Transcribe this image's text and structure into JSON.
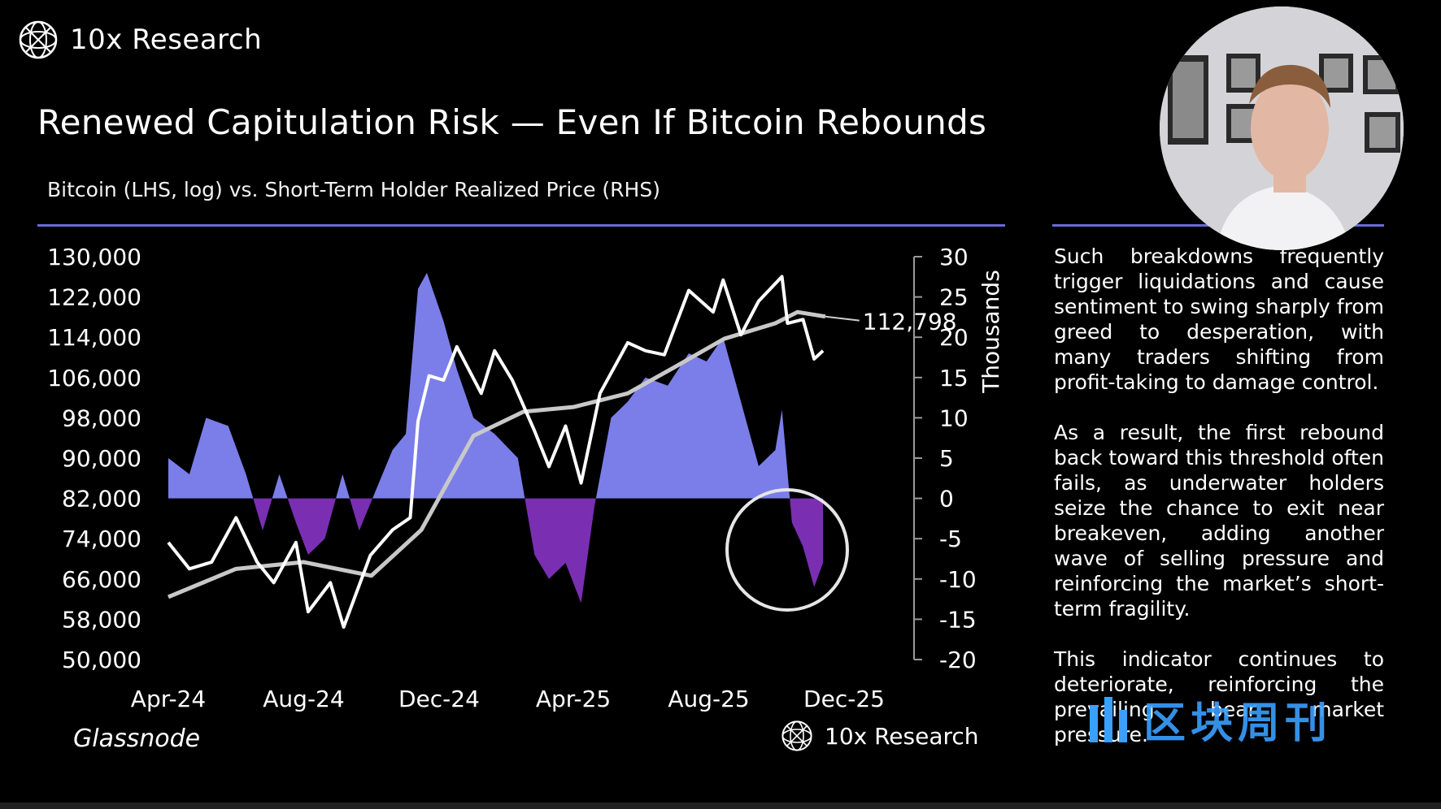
{
  "brand": {
    "name": "10x Research"
  },
  "slide_title": "Renewed Capitulation Risk — Even If Bitcoin Rebounds",
  "chart_subtitle": "Bitcoin (LHS, log) vs. Short-Term Holder Realized Price (RHS)",
  "source": "Glassnode",
  "footer_brand": "10x Research",
  "sidebar": {
    "paragraphs": [
      "Such breakdowns frequently trigger liquidations and cause sentiment to swing sharply from greed to desperation, with many traders shifting from profit-taking to damage control.",
      "As a result, the first rebound back toward this threshold often fails, as underwater holders seize the chance to exit near breakeven, adding another wave of selling pressure and reinforcing the market’s short-term fragility.",
      "This indicator continues to deteriorate, reinforcing the prevailing bear market pressure."
    ]
  },
  "watermark": "区块周刊",
  "colors": {
    "positive": "#7b7ee8",
    "negative": "#7a2fb3",
    "price": "#ffffff",
    "realized": "#c8c8c8",
    "rule": "#6a6ad8"
  },
  "chart_data": {
    "type": "line",
    "x_ticks": [
      "Apr-24",
      "Aug-24",
      "Dec-24",
      "Apr-25",
      "Aug-25",
      "Dec-25"
    ],
    "x_tick_dates": [
      "2024-04-01",
      "2024-08-01",
      "2024-12-01",
      "2025-04-01",
      "2025-08-01",
      "2025-12-01"
    ],
    "x_range": [
      "2024-04-01",
      "2025-12-01"
    ],
    "y_left": {
      "label": "",
      "scale": "log",
      "range": [
        50000,
        130000
      ],
      "ticks": [
        "130,000",
        "122,000",
        "114,000",
        "106,000",
        "98,000",
        "90,000",
        "82,000",
        "74,000",
        "66,000",
        "58,000",
        "50,000"
      ]
    },
    "y_right": {
      "label": "Thousands",
      "range": [
        -20,
        30
      ],
      "ticks": [
        "30",
        "25",
        "20",
        "15",
        "10",
        "5",
        "0",
        "-5",
        "-10",
        "-15",
        "-20"
      ]
    },
    "end_label": "112,798",
    "series": [
      {
        "kind": "line",
        "axis": "left",
        "x": [
          "2024-04-01",
          "2024-04-20",
          "2024-05-10",
          "2024-06-01",
          "2024-06-20",
          "2024-07-05",
          "2024-07-25",
          "2024-08-05",
          "2024-08-25",
          "2024-09-06",
          "2024-09-30",
          "2024-10-20",
          "2024-11-05",
          "2024-11-12",
          "2024-11-22",
          "2024-12-05",
          "2024-12-17",
          "2025-01-08",
          "2025-01-20",
          "2025-02-05",
          "2025-02-25",
          "2025-03-10",
          "2025-03-25",
          "2025-04-08",
          "2025-04-25",
          "2025-05-20",
          "2025-06-05",
          "2025-06-22",
          "2025-07-14",
          "2025-08-05",
          "2025-08-14",
          "2025-08-30",
          "2025-09-15",
          "2025-10-06",
          "2025-10-11",
          "2025-10-25",
          "2025-11-04",
          "2025-11-12"
        ],
        "y": [
          66000,
          62000,
          63000,
          70000,
          63000,
          60000,
          66000,
          56000,
          60000,
          54000,
          64000,
          68000,
          70000,
          88000,
          98000,
          97000,
          105000,
          94000,
          104000,
          97000,
          86000,
          79000,
          87000,
          76000,
          94000,
          106000,
          104000,
          103000,
          120000,
          114000,
          123000,
          108000,
          117000,
          124000,
          111000,
          112000,
          102000,
          104000
        ]
      },
      {
        "kind": "line",
        "axis": "left",
        "x": [
          "2024-04-01",
          "2024-06-01",
          "2024-08-01",
          "2024-10-01",
          "2024-11-15",
          "2025-01-01",
          "2025-02-15",
          "2025-04-01",
          "2025-05-20",
          "2025-07-01",
          "2025-08-15",
          "2025-09-30",
          "2025-10-20",
          "2025-11-14"
        ],
        "y": [
          58000,
          62000,
          63000,
          61000,
          68000,
          85000,
          90000,
          91000,
          94000,
          100000,
          107000,
          111000,
          114000,
          112798
        ]
      },
      {
        "kind": "area",
        "axis": "right",
        "unit": "thousands",
        "x": [
          "2024-04-01",
          "2024-04-20",
          "2024-05-05",
          "2024-05-25",
          "2024-06-10",
          "2024-06-25",
          "2024-07-10",
          "2024-07-25",
          "2024-08-05",
          "2024-08-20",
          "2024-09-05",
          "2024-09-20",
          "2024-10-05",
          "2024-10-20",
          "2024-11-01",
          "2024-11-12",
          "2024-11-20",
          "2024-12-05",
          "2024-12-17",
          "2025-01-01",
          "2025-01-20",
          "2025-02-10",
          "2025-02-25",
          "2025-03-10",
          "2025-03-25",
          "2025-04-08",
          "2025-04-20",
          "2025-05-05",
          "2025-05-20",
          "2025-06-05",
          "2025-06-25",
          "2025-07-14",
          "2025-07-30",
          "2025-08-14",
          "2025-08-30",
          "2025-09-15",
          "2025-09-30",
          "2025-10-06",
          "2025-10-15",
          "2025-10-25",
          "2025-11-04",
          "2025-11-12"
        ],
        "y": [
          5,
          3,
          10,
          9,
          3,
          -4,
          3,
          -3,
          -7,
          -5,
          3,
          -4,
          1,
          6,
          8,
          26,
          28,
          22,
          16,
          10,
          8,
          5,
          -7,
          -10,
          -8,
          -13,
          -1,
          10,
          12,
          15,
          14,
          18,
          17,
          20,
          12,
          4,
          6,
          11,
          -3,
          -6,
          -11,
          -8
        ]
      }
    ]
  }
}
